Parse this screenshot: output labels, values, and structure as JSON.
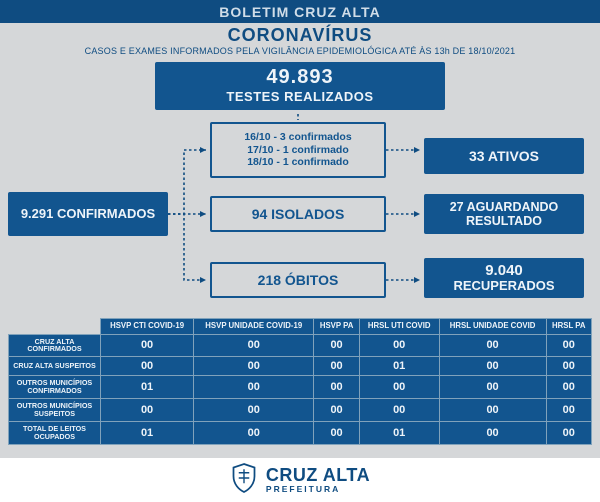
{
  "colors": {
    "dark_blue": "#12558f",
    "header_blue": "#0f4c81",
    "bg_gray": "#d5d7d9",
    "text_light": "#eef4f9",
    "grid_border": "#80a2bb",
    "white": "#ffffff"
  },
  "topbar": "BOLETIM CRUZ ALTA",
  "header": {
    "title": "CORONAVÍRUS",
    "subtitle": "CASOS E EXAMES INFORMADOS PELA VIGILÂNCIA EPIDEMIOLÓGICA ATÉ ÀS 13h DE 18/10/2021"
  },
  "tests": {
    "value": "49.893",
    "label": "TESTES REALIZADOS"
  },
  "flow": {
    "confirmados": "9.291 CONFIRMADOS",
    "recent": [
      "16/10 - 3 confirmados",
      "17/10 - 1 confirmado",
      "18/10 - 1 confirmado"
    ],
    "isolados": "94 ISOLADOS",
    "obitos": "218 ÓBITOS",
    "ativos": "33 ATIVOS",
    "aguardando_l1": "27 AGUARDANDO",
    "aguardando_l2": "RESULTADO",
    "recuperados_n": "9.040",
    "recuperados_l": "RECUPERADOS"
  },
  "table": {
    "columns": [
      "HSVP CTI COVID-19",
      "HSVP UNIDADE COVID-19",
      "HSVP PA",
      "HRSL UTI COVID",
      "HRSL UNIDADE COVID",
      "HRSL PA"
    ],
    "rows": [
      {
        "label": "CRUZ ALTA CONFIRMADOS",
        "cells": [
          "00",
          "00",
          "00",
          "00",
          "00",
          "00"
        ]
      },
      {
        "label": "CRUZ ALTA SUSPEITOS",
        "cells": [
          "00",
          "00",
          "00",
          "01",
          "00",
          "00"
        ]
      },
      {
        "label": "OUTROS MUNICÍPIOS CONFIRMADOS",
        "cells": [
          "01",
          "00",
          "00",
          "00",
          "00",
          "00"
        ]
      },
      {
        "label": "OUTROS MUNICÍPIOS SUSPEITOS",
        "cells": [
          "00",
          "00",
          "00",
          "00",
          "00",
          "00"
        ]
      },
      {
        "label": "TOTAL DE LEITOS OCUPADOS",
        "cells": [
          "01",
          "00",
          "00",
          "01",
          "00",
          "00"
        ]
      }
    ]
  },
  "footer": {
    "city": "CRUZ ALTA",
    "pref": "PREFEITURA"
  }
}
